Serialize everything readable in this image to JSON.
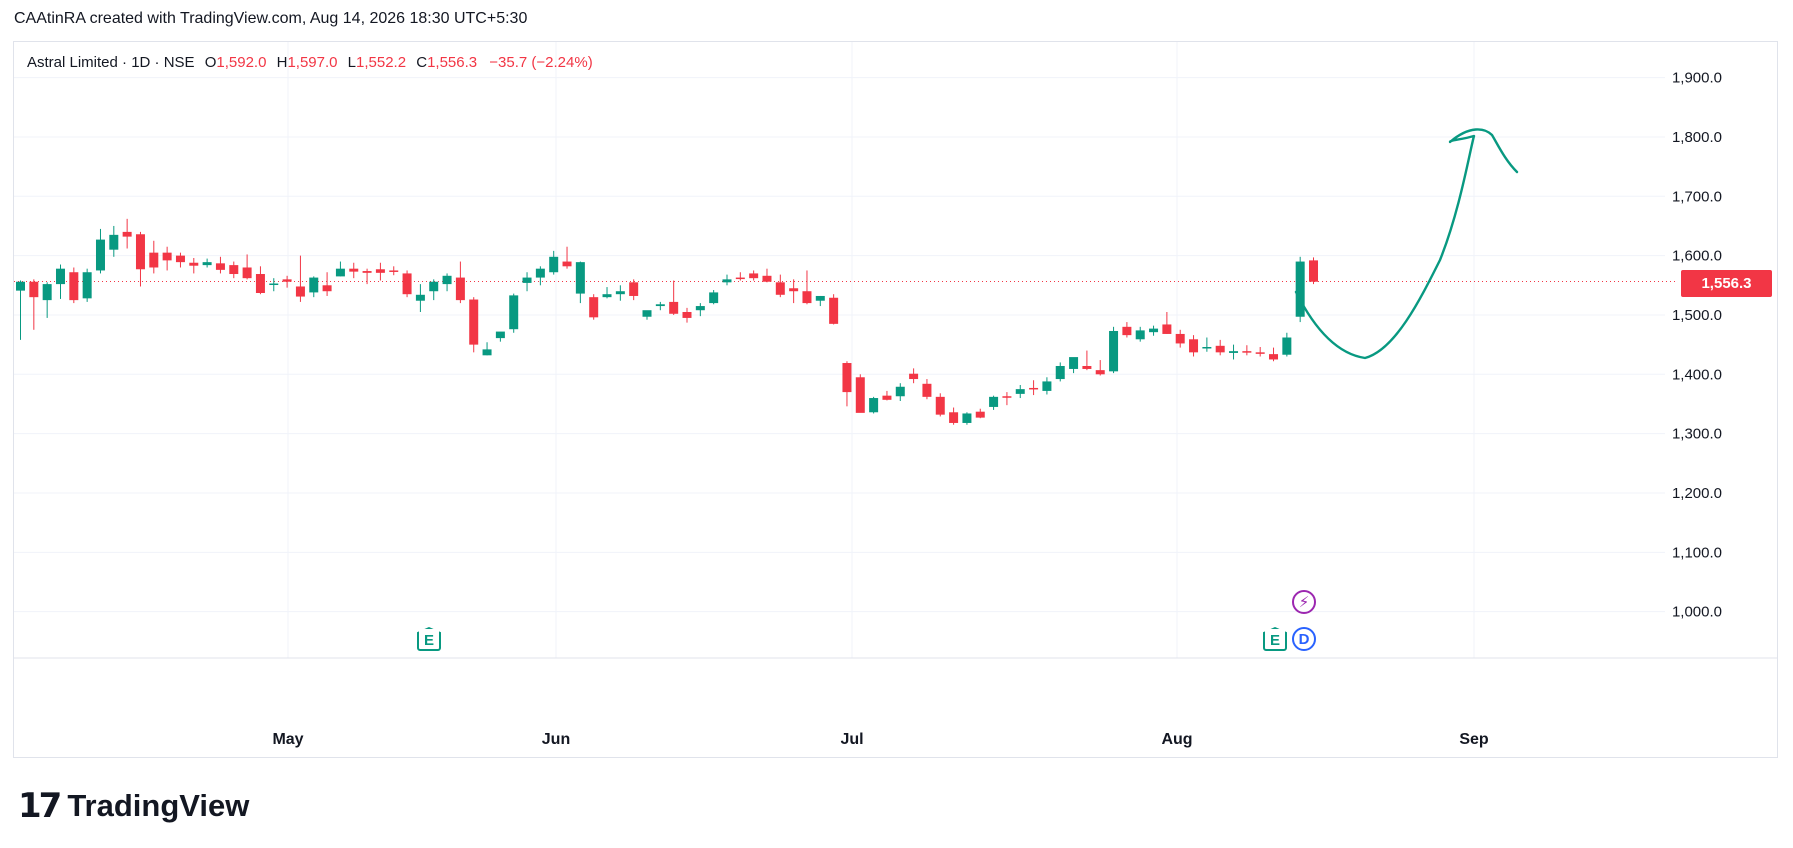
{
  "header": {
    "credit": "CAAtinRA created with TradingView.com, Aug 14, 2026 18:30 UTC+5:30"
  },
  "legend": {
    "symbol": "Astral Limited · 1D · NSE",
    "open_label": "O",
    "open": "1,592.0",
    "high_label": "H",
    "high": "1,597.0",
    "low_label": "L",
    "low": "1,552.2",
    "close_label": "C",
    "close": "1,556.3",
    "change": "−35.7 (−2.24%)"
  },
  "last_price_tag": "1,556.3",
  "badges": {
    "earnings": "E",
    "dividend": "D",
    "split": "⚡"
  },
  "brand": {
    "logo_mark": "17",
    "name": "TradingView"
  },
  "colors": {
    "up": "#089981",
    "down": "#f23645",
    "drawing": "#089981",
    "grid": "#f0f3fa"
  },
  "chart_data": {
    "type": "candlestick",
    "y_axis": {
      "ticks": [
        "1,900.0",
        "1,800.0",
        "1,700.0",
        "1,600.0",
        "1,500.0",
        "1,400.0",
        "1,300.0",
        "1,200.0",
        "1,100.0",
        "1,000.0"
      ],
      "range": [
        950,
        1940
      ]
    },
    "x_axis": {
      "ticks": [
        "May",
        "Jun",
        "Jul",
        "Aug",
        "Sep"
      ]
    },
    "last_price": 1556.3,
    "candles": [
      [
        1541,
        1558,
        1458,
        1556
      ],
      [
        1556,
        1560,
        1475,
        1530
      ],
      [
        1525,
        1555,
        1495,
        1552
      ],
      [
        1552,
        1585,
        1527,
        1578
      ],
      [
        1572,
        1580,
        1520,
        1525
      ],
      [
        1528,
        1578,
        1522,
        1572
      ],
      [
        1575,
        1645,
        1570,
        1627
      ],
      [
        1610,
        1650,
        1598,
        1635
      ],
      [
        1640,
        1662,
        1612,
        1632
      ],
      [
        1636,
        1640,
        1548,
        1577
      ],
      [
        1605,
        1625,
        1570,
        1580
      ],
      [
        1605,
        1615,
        1575,
        1592
      ],
      [
        1600,
        1605,
        1580,
        1589
      ],
      [
        1588,
        1596,
        1570,
        1583
      ],
      [
        1584,
        1595,
        1580,
        1589
      ],
      [
        1587,
        1598,
        1570,
        1576
      ],
      [
        1584,
        1590,
        1562,
        1569
      ],
      [
        1580,
        1602,
        1560,
        1562
      ],
      [
        1569,
        1582,
        1535,
        1537
      ],
      [
        1552,
        1562,
        1540,
        1553
      ],
      [
        1560,
        1566,
        1546,
        1556
      ],
      [
        1548,
        1600,
        1522,
        1531
      ],
      [
        1538,
        1565,
        1530,
        1563
      ],
      [
        1550,
        1572,
        1532,
        1540
      ],
      [
        1565,
        1590,
        1565,
        1578
      ],
      [
        1578,
        1588,
        1562,
        1573
      ],
      [
        1574,
        1578,
        1552,
        1571
      ],
      [
        1577,
        1588,
        1558,
        1571
      ],
      [
        1575,
        1582,
        1567,
        1574
      ],
      [
        1570,
        1575,
        1530,
        1535
      ],
      [
        1524,
        1552,
        1505,
        1534
      ],
      [
        1540,
        1560,
        1525,
        1556
      ],
      [
        1552,
        1570,
        1540,
        1566
      ],
      [
        1563,
        1590,
        1520,
        1525
      ],
      [
        1526,
        1530,
        1437,
        1450
      ],
      [
        1432,
        1454,
        1432,
        1442
      ],
      [
        1461,
        1468,
        1455,
        1472
      ],
      [
        1476,
        1536,
        1470,
        1533
      ],
      [
        1554,
        1572,
        1540,
        1563
      ],
      [
        1563,
        1582,
        1550,
        1578
      ],
      [
        1572,
        1608,
        1568,
        1598
      ],
      [
        1590,
        1615,
        1578,
        1582
      ],
      [
        1536,
        1590,
        1520,
        1589
      ],
      [
        1530,
        1535,
        1492,
        1496
      ],
      [
        1530,
        1547,
        1528,
        1535
      ],
      [
        1535,
        1550,
        1524,
        1540
      ],
      [
        1555,
        1560,
        1525,
        1532
      ],
      [
        1497,
        1505,
        1492,
        1508
      ],
      [
        1515,
        1522,
        1508,
        1518
      ],
      [
        1522,
        1558,
        1500,
        1502
      ],
      [
        1505,
        1512,
        1487,
        1495
      ],
      [
        1508,
        1520,
        1498,
        1515
      ],
      [
        1520,
        1542,
        1518,
        1538
      ],
      [
        1555,
        1568,
        1550,
        1560
      ],
      [
        1563,
        1572,
        1558,
        1561
      ],
      [
        1570,
        1575,
        1558,
        1562
      ],
      [
        1566,
        1578,
        1555,
        1556
      ],
      [
        1555,
        1568,
        1530,
        1534
      ],
      [
        1545,
        1560,
        1520,
        1540
      ],
      [
        1540,
        1575,
        1518,
        1520
      ],
      [
        1524,
        1532,
        1515,
        1532
      ],
      [
        1529,
        1535,
        1484,
        1485
      ],
      [
        1419,
        1422,
        1346,
        1370
      ],
      [
        1395,
        1400,
        1336,
        1335
      ],
      [
        1336,
        1362,
        1334,
        1360
      ],
      [
        1364,
        1372,
        1356,
        1357
      ],
      [
        1363,
        1385,
        1355,
        1379
      ],
      [
        1401,
        1410,
        1385,
        1392
      ],
      [
        1384,
        1392,
        1358,
        1362
      ],
      [
        1362,
        1368,
        1329,
        1332
      ],
      [
        1336,
        1344,
        1315,
        1318
      ],
      [
        1318,
        1336,
        1315,
        1334
      ],
      [
        1337,
        1342,
        1326,
        1327
      ],
      [
        1345,
        1364,
        1340,
        1362
      ],
      [
        1363,
        1370,
        1348,
        1361
      ],
      [
        1367,
        1382,
        1360,
        1375
      ],
      [
        1377,
        1390,
        1365,
        1375
      ],
      [
        1372,
        1395,
        1366,
        1388
      ],
      [
        1392,
        1420,
        1388,
        1414
      ],
      [
        1409,
        1428,
        1402,
        1429
      ],
      [
        1414,
        1440,
        1407,
        1409
      ],
      [
        1407,
        1424,
        1398,
        1400
      ],
      [
        1405,
        1480,
        1402,
        1473
      ],
      [
        1480,
        1488,
        1462,
        1466
      ],
      [
        1459,
        1480,
        1455,
        1474
      ],
      [
        1471,
        1482,
        1465,
        1477
      ],
      [
        1484,
        1505,
        1468,
        1468
      ],
      [
        1468,
        1475,
        1445,
        1452
      ],
      [
        1459,
        1466,
        1430,
        1437
      ],
      [
        1445,
        1462,
        1438,
        1446
      ],
      [
        1448,
        1458,
        1432,
        1437
      ],
      [
        1436,
        1450,
        1425,
        1439
      ],
      [
        1439,
        1449,
        1432,
        1437
      ],
      [
        1437,
        1446,
        1430,
        1435
      ],
      [
        1434,
        1445,
        1422,
        1425
      ],
      [
        1433,
        1470,
        1430,
        1462
      ],
      [
        1497,
        1598,
        1488,
        1590
      ],
      [
        1592,
        1597,
        1552,
        1556
      ]
    ],
    "annotation": "hand-drawn projection curve"
  }
}
